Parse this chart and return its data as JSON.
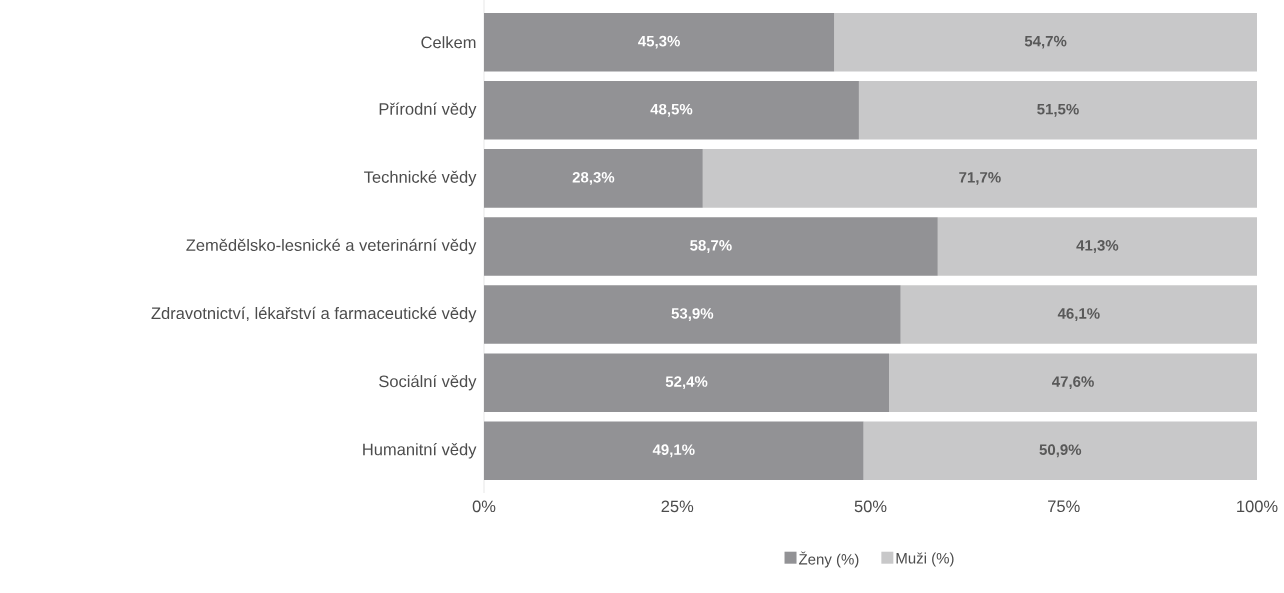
{
  "chart_data": {
    "type": "bar",
    "orientation": "horizontal",
    "stacked": true,
    "categories": [
      "Celkem",
      "Přírodní vědy",
      "Technické vědy",
      "Zemědělsko-lesnické a veterinární vědy",
      "Zdravotnictví, lékařství a farmaceutické vědy",
      "Sociální vědy",
      "Humanitní vědy"
    ],
    "series": [
      {
        "name": "Ženy (%)",
        "color": "#929295",
        "values": [
          45.3,
          48.5,
          28.3,
          58.7,
          53.9,
          52.4,
          49.1
        ],
        "value_labels": [
          "45,3%",
          "48,5%",
          "28,3%",
          "58,7%",
          "53,9%",
          "52,4%",
          "49,1%"
        ]
      },
      {
        "name": "Muži (%)",
        "color": "#c8c8c9",
        "values": [
          54.7,
          51.5,
          71.7,
          41.3,
          46.1,
          47.6,
          50.9
        ],
        "value_labels": [
          "54,7%",
          "51,5%",
          "71,7%",
          "41,3%",
          "46,1%",
          "47,6%",
          "50,9%"
        ]
      }
    ],
    "xlim": [
      0,
      100
    ],
    "xticks": [
      {
        "value": 0,
        "label": "0%"
      },
      {
        "value": 25,
        "label": "25%"
      },
      {
        "value": 50,
        "label": "50%"
      },
      {
        "value": 75,
        "label": "75%"
      },
      {
        "value": 100,
        "label": "100%"
      }
    ],
    "legend": "bottom"
  }
}
